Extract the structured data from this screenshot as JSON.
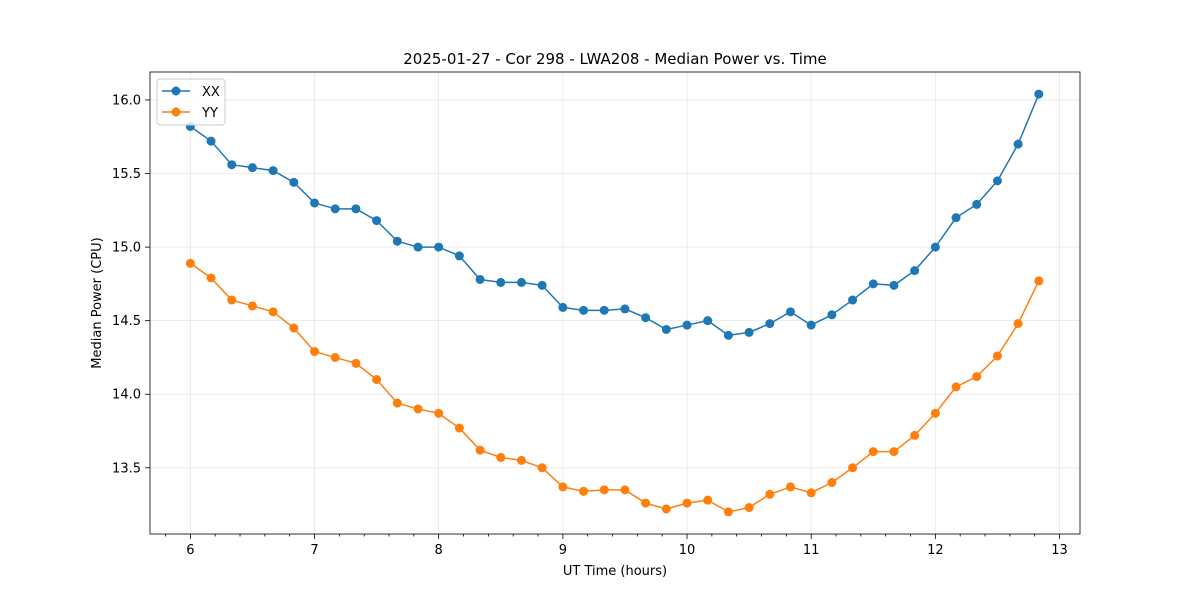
{
  "chart_data": {
    "type": "line",
    "title": "2025-01-27 - Cor 298 - LWA208 - Median Power vs. Time",
    "xlabel": "UT Time (hours)",
    "ylabel": "Median Power (CPU)",
    "xlim": [
      5.675,
      13.165
    ],
    "ylim": [
      13.05,
      16.19
    ],
    "xticks": [
      6,
      7,
      8,
      9,
      10,
      11,
      12,
      13
    ],
    "xtick_labels": [
      "6",
      "7",
      "8",
      "9",
      "10",
      "11",
      "12",
      "13"
    ],
    "yticks": [
      13.5,
      14.0,
      14.5,
      15.0,
      15.5,
      16.0
    ],
    "ytick_labels": [
      "13.5",
      "14.0",
      "14.5",
      "15.0",
      "15.5",
      "16.0"
    ],
    "grid": true,
    "legend_position": "top-left",
    "x": [
      6.0,
      6.1667,
      6.3333,
      6.5,
      6.6667,
      6.8333,
      7.0,
      7.1667,
      7.3333,
      7.5,
      7.6667,
      7.8333,
      8.0,
      8.1667,
      8.3333,
      8.5,
      8.6667,
      8.8333,
      9.0,
      9.1667,
      9.3333,
      9.5,
      9.6667,
      9.8333,
      10.0,
      10.1667,
      10.3333,
      10.5,
      10.6667,
      10.8333,
      11.0,
      11.1667,
      11.3333,
      11.5,
      11.6667,
      11.8333,
      12.0,
      12.1667,
      12.3333,
      12.5,
      12.6667,
      12.8333
    ],
    "series": [
      {
        "name": "XX",
        "color": "#1f77b4",
        "values": [
          15.82,
          15.72,
          15.56,
          15.54,
          15.52,
          15.44,
          15.3,
          15.26,
          15.26,
          15.18,
          15.04,
          15.0,
          15.0,
          14.94,
          14.78,
          14.76,
          14.76,
          14.74,
          14.59,
          14.57,
          14.57,
          14.58,
          14.52,
          14.44,
          14.47,
          14.5,
          14.4,
          14.42,
          14.48,
          14.56,
          14.47,
          14.54,
          14.64,
          14.75,
          14.74,
          14.84,
          15.0,
          15.2,
          15.29,
          15.45,
          15.7,
          16.04
        ]
      },
      {
        "name": "YY",
        "color": "#ff7f0e",
        "values": [
          14.89,
          14.79,
          14.64,
          14.6,
          14.56,
          14.45,
          14.29,
          14.25,
          14.21,
          14.1,
          13.94,
          13.9,
          13.87,
          13.77,
          13.62,
          13.57,
          13.55,
          13.5,
          13.37,
          13.34,
          13.35,
          13.35,
          13.26,
          13.22,
          13.26,
          13.28,
          13.2,
          13.23,
          13.32,
          13.37,
          13.33,
          13.4,
          13.5,
          13.61,
          13.61,
          13.72,
          13.87,
          14.05,
          14.12,
          14.26,
          14.48,
          14.77
        ]
      }
    ]
  }
}
